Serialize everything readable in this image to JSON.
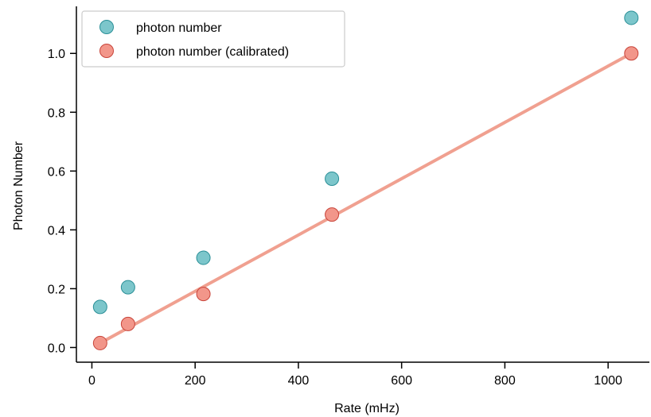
{
  "chart_data": {
    "type": "scatter",
    "xlabel": "Rate (mHz)",
    "ylabel": "Photon Number",
    "xlim": [
      -30,
      1080
    ],
    "ylim": [
      -0.05,
      1.16
    ],
    "xticks": [
      0,
      200,
      400,
      600,
      800,
      1000
    ],
    "yticks": [
      0.0,
      0.2,
      0.4,
      0.6,
      0.8,
      1.0
    ],
    "xtick_labels": [
      "0",
      "200",
      "400",
      "600",
      "800",
      "1000"
    ],
    "ytick_labels": [
      "0.0",
      "0.2",
      "0.4",
      "0.6",
      "0.8",
      "1.0"
    ],
    "grid": false,
    "legend_position": "top-left",
    "series": [
      {
        "name": "photon number",
        "color": "#7cc6cb",
        "edge_color": "#2a8f97",
        "x": [
          16,
          70,
          216,
          465,
          1045
        ],
        "y": [
          0.138,
          0.205,
          0.305,
          0.574,
          1.121
        ]
      },
      {
        "name": "photon number (calibrated)",
        "color": "#f2968a",
        "edge_color": "#c8443a",
        "x": [
          16,
          70,
          216,
          465,
          1045
        ],
        "y": [
          0.015,
          0.08,
          0.182,
          0.452,
          1.0
        ]
      }
    ],
    "fit_line": {
      "color": "#f0a090",
      "x": [
        16,
        1045
      ],
      "y": [
        0.015,
        1.0
      ]
    }
  }
}
